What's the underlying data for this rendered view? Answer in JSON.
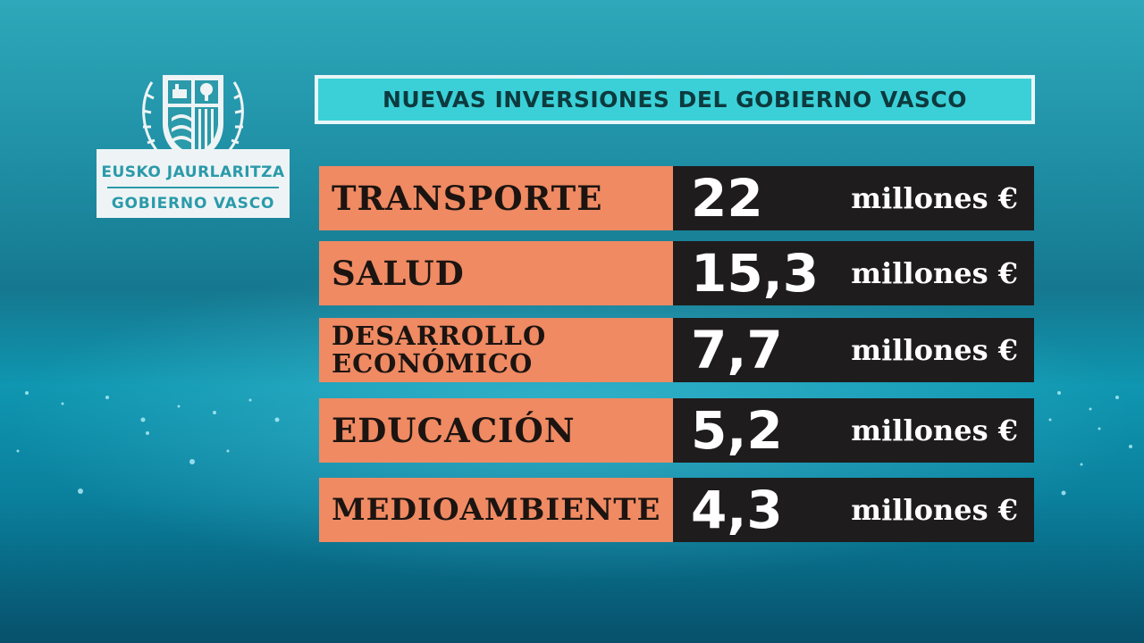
{
  "logo": {
    "line1": "EUSKO JAURLARITZA",
    "line2": "GOBIERNO VASCO",
    "emblem_icon": "coat-of-arms-icon"
  },
  "title": "NUEVAS INVERSIONES DEL GOBIERNO VASCO",
  "unit": "millones €",
  "colors": {
    "label_bg": "#ef8a63",
    "value_bg": "#1f1c1d",
    "title_bg": "#3bd0d8"
  },
  "rows": [
    {
      "label": "TRANSPORTE",
      "value": "22"
    },
    {
      "label": "SALUD",
      "value": "15,3"
    },
    {
      "label": "DESARROLLO\nECONÓMICO",
      "value": "7,7"
    },
    {
      "label": "EDUCACIÓN",
      "value": "5,2"
    },
    {
      "label": "MEDIOAMBIENTE",
      "value": "4,3"
    }
  ]
}
